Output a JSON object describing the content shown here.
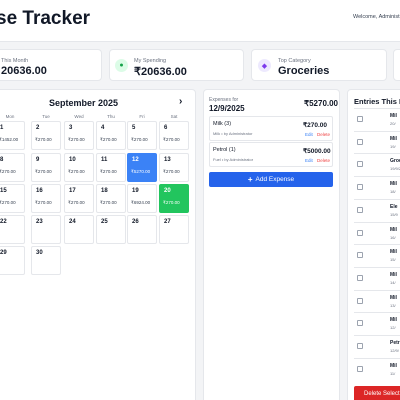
{
  "header": {
    "title_fragment": "se Tracker",
    "welcome_fragment": "Welcome, Administ"
  },
  "stats": [
    {
      "label": "This Month",
      "value": "20636.00",
      "icon": "none"
    },
    {
      "label": "My Spending",
      "value": "₹20636.00",
      "icon": "user-icon"
    },
    {
      "label": "Top Category",
      "value": "Groceries",
      "icon": "tag-icon"
    }
  ],
  "calendar": {
    "title": "September 2025",
    "weekdays": [
      "Mon",
      "Tue",
      "Wed",
      "Thu",
      "Fri",
      "Sat"
    ],
    "weeks": [
      [
        {
          "num": "1",
          "amt": "₹1452.00"
        },
        {
          "num": "2",
          "amt": "₹270.00"
        },
        {
          "num": "3",
          "amt": "₹270.00"
        },
        {
          "num": "4",
          "amt": "₹270.00"
        },
        {
          "num": "5",
          "amt": "₹270.00"
        },
        {
          "num": "6",
          "amt": "₹270.00"
        }
      ],
      [
        {
          "num": "8",
          "amt": "₹270.00"
        },
        {
          "num": "9",
          "amt": "₹270.00"
        },
        {
          "num": "10",
          "amt": "₹270.00"
        },
        {
          "num": "11",
          "amt": "₹270.00"
        },
        {
          "num": "12",
          "amt": "₹5270.00"
        },
        {
          "num": "13",
          "amt": "₹270.00"
        }
      ],
      [
        {
          "num": "15",
          "amt": "₹270.00"
        },
        {
          "num": "16",
          "amt": "₹270.00"
        },
        {
          "num": "17",
          "amt": "₹270.00"
        },
        {
          "num": "18",
          "amt": "₹270.00"
        },
        {
          "num": "19",
          "amt": "₹6924.00"
        },
        {
          "num": "20",
          "amt": "₹270.00"
        }
      ],
      [
        {
          "num": "22",
          "amt": ""
        },
        {
          "num": "23",
          "amt": ""
        },
        {
          "num": "24",
          "amt": ""
        },
        {
          "num": "25",
          "amt": ""
        },
        {
          "num": "26",
          "amt": ""
        },
        {
          "num": "27",
          "amt": ""
        }
      ],
      [
        {
          "num": "29",
          "amt": ""
        },
        {
          "num": "30",
          "amt": ""
        }
      ]
    ],
    "selected_day": "12",
    "today_day": "20"
  },
  "expenses": {
    "heading": "Expenses for",
    "date": "12/9/2025",
    "total": "₹5270.00",
    "items": [
      {
        "name": "Milk (3)",
        "sub": "Milk • by Administrator",
        "amount": "₹270.00",
        "edit": "Edit",
        "delete": "Delete"
      },
      {
        "name": "Petrol (1)",
        "sub": "Fuel • by Administrator",
        "amount": "₹5000.00",
        "edit": "Edit",
        "delete": "Delete"
      }
    ],
    "add_label": "Add Expense"
  },
  "entries": {
    "title": "Entries This M",
    "items": [
      {
        "name": "Mil",
        "date": "20/"
      },
      {
        "name": "Mil",
        "date": "19/"
      },
      {
        "name": "Groce",
        "date": "19/9/2"
      },
      {
        "name": "Mil",
        "date": "18/"
      },
      {
        "name": "Ele",
        "date": "15/9"
      },
      {
        "name": "Mil",
        "date": "16/"
      },
      {
        "name": "Mil",
        "date": "15/"
      },
      {
        "name": "Mil",
        "date": "14/"
      },
      {
        "name": "Mil",
        "date": "13/"
      },
      {
        "name": "Mil",
        "date": "12/"
      },
      {
        "name": "Petr",
        "date": "12/9/"
      },
      {
        "name": "Mil",
        "date": "11/"
      }
    ],
    "delete_selected": "Delete Select"
  }
}
